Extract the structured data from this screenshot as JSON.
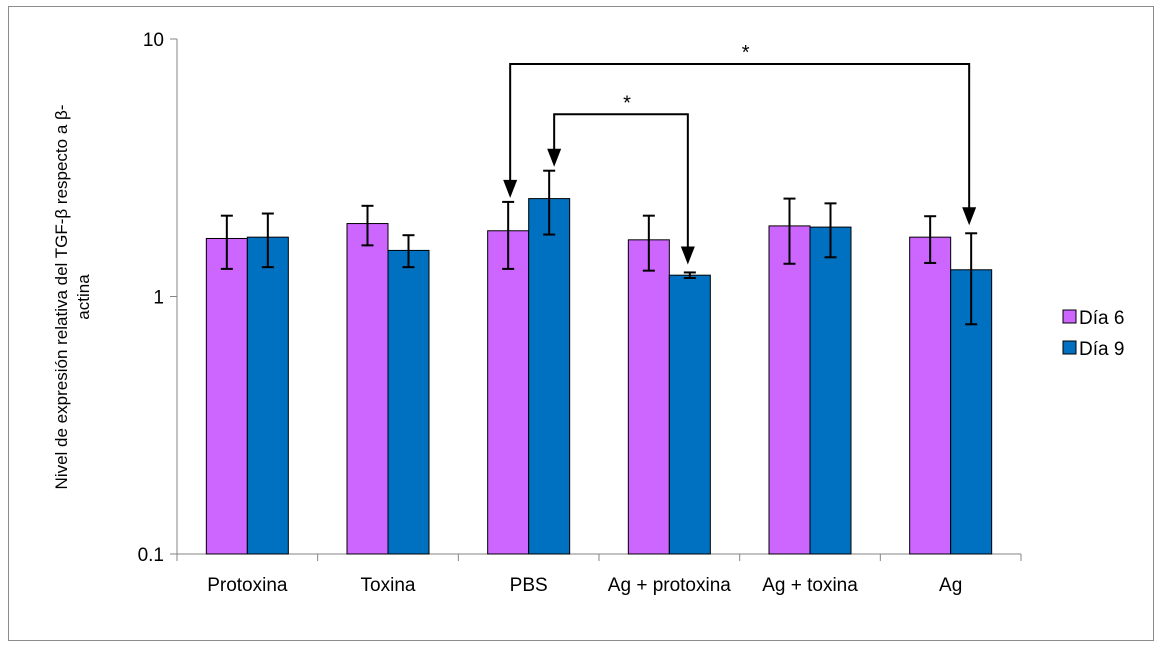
{
  "chart_data": {
    "type": "bar",
    "y_scale": "log",
    "ylim": [
      0.1,
      10
    ],
    "y_ticks": [
      "0.1",
      "1",
      "10"
    ],
    "ylabel_lines": [
      "Nivel de expresión relativa del TGF-β respecto a β-",
      "actina"
    ],
    "categories": [
      "Protoxina",
      "Toxina",
      "PBS",
      "Ag + protoxina",
      "Ag + toxina",
      "Ag"
    ],
    "series": [
      {
        "name": "Día 6",
        "color": "#cc66ff",
        "values": [
          1.68,
          1.92,
          1.8,
          1.66,
          1.88,
          1.7
        ],
        "err_low": [
          1.28,
          1.58,
          1.28,
          1.26,
          1.34,
          1.35
        ],
        "err_high": [
          2.06,
          2.25,
          2.33,
          2.06,
          2.4,
          2.05
        ]
      },
      {
        "name": "Día 9",
        "color": "#0070c0",
        "values": [
          1.7,
          1.51,
          2.4,
          1.21,
          1.86,
          1.27
        ],
        "err_low": [
          1.3,
          1.3,
          1.74,
          1.18,
          1.42,
          0.78
        ],
        "err_high": [
          2.1,
          1.73,
          3.08,
          1.24,
          2.3,
          1.76
        ]
      }
    ],
    "legend_position": "right",
    "significance": [
      {
        "label": "*",
        "from_category": "PBS",
        "to_category": "Ag + protoxina",
        "from_series": "Día 9",
        "to_series": "Día 9",
        "arrow_top": 5.1
      },
      {
        "label": "*",
        "from_category": "PBS",
        "to_category": "Ag",
        "from_series": "Día 6",
        "to_series": "Día 9",
        "arrow_top": 8.0
      }
    ],
    "grid": false
  }
}
